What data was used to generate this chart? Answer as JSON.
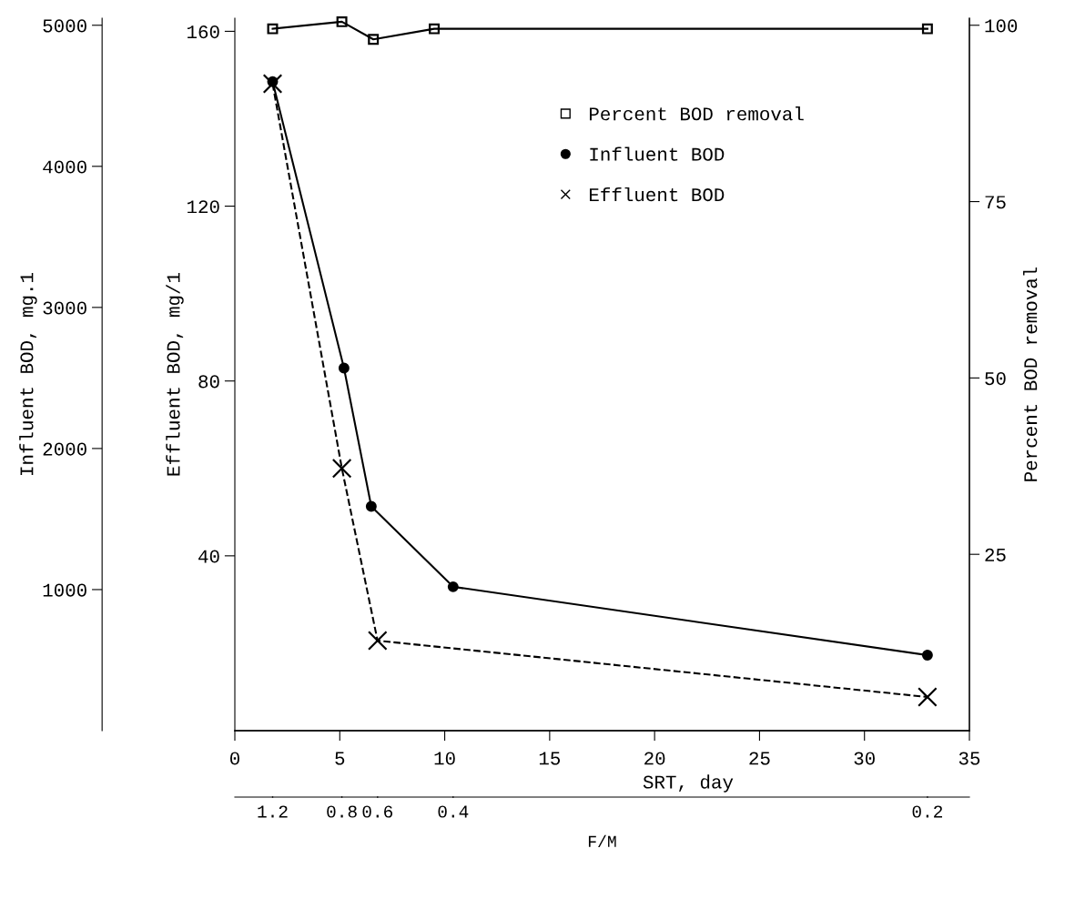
{
  "chart_data": {
    "type": "line",
    "xlabel": "SRT, day",
    "ylabel": "Effluent BOD, mg/1",
    "y2label": "Percent BOD removal",
    "y3label": "Influent BOD, mg.1",
    "x2label": "F/M",
    "xlim": [
      0,
      35
    ],
    "xticks": [
      0,
      5,
      10,
      15,
      20,
      25,
      30,
      35
    ],
    "ylim": [
      0,
      163
    ],
    "yticks": [
      40,
      80,
      120,
      160
    ],
    "y2lim": [
      0,
      101
    ],
    "y2ticks": [
      25,
      50,
      75,
      100
    ],
    "y3lim": [
      0,
      5050
    ],
    "y3ticks": [
      1000,
      2000,
      3000,
      4000,
      5000
    ],
    "annotations": [
      {
        "text": "1.2",
        "x": 1.8
      },
      {
        "text": "0.8",
        "x": 5.1
      },
      {
        "text": "0.6",
        "x": 6.8
      },
      {
        "text": "0.4",
        "x": 10.4
      },
      {
        "text": "0.2",
        "x": 33
      }
    ],
    "legend": "top",
    "grid": false,
    "series": [
      {
        "name": "Percent BOD removal",
        "color": "#000000",
        "axis": "y2",
        "marker": "square",
        "line_style": "solid",
        "x": [
          1.8,
          5.1,
          6.6,
          9.5,
          33
        ],
        "values": [
          99.5,
          100.5,
          98,
          99.5,
          99.5
        ]
      },
      {
        "name": "Influent BOD",
        "color": "#000000",
        "axis": "y3",
        "marker": "circle",
        "line_style": "solid",
        "x": [
          1.8,
          5.2,
          6.5,
          10.4,
          33
        ],
        "values": [
          4600,
          2570,
          1590,
          1020,
          535
        ]
      },
      {
        "name": "Effluent BOD",
        "color": "#000000",
        "axis": "y",
        "marker": "cross",
        "line_style": "dashed",
        "x": [
          1.8,
          5.1,
          6.8,
          33
        ],
        "values": [
          148,
          60,
          20.6,
          7.7
        ]
      }
    ]
  }
}
